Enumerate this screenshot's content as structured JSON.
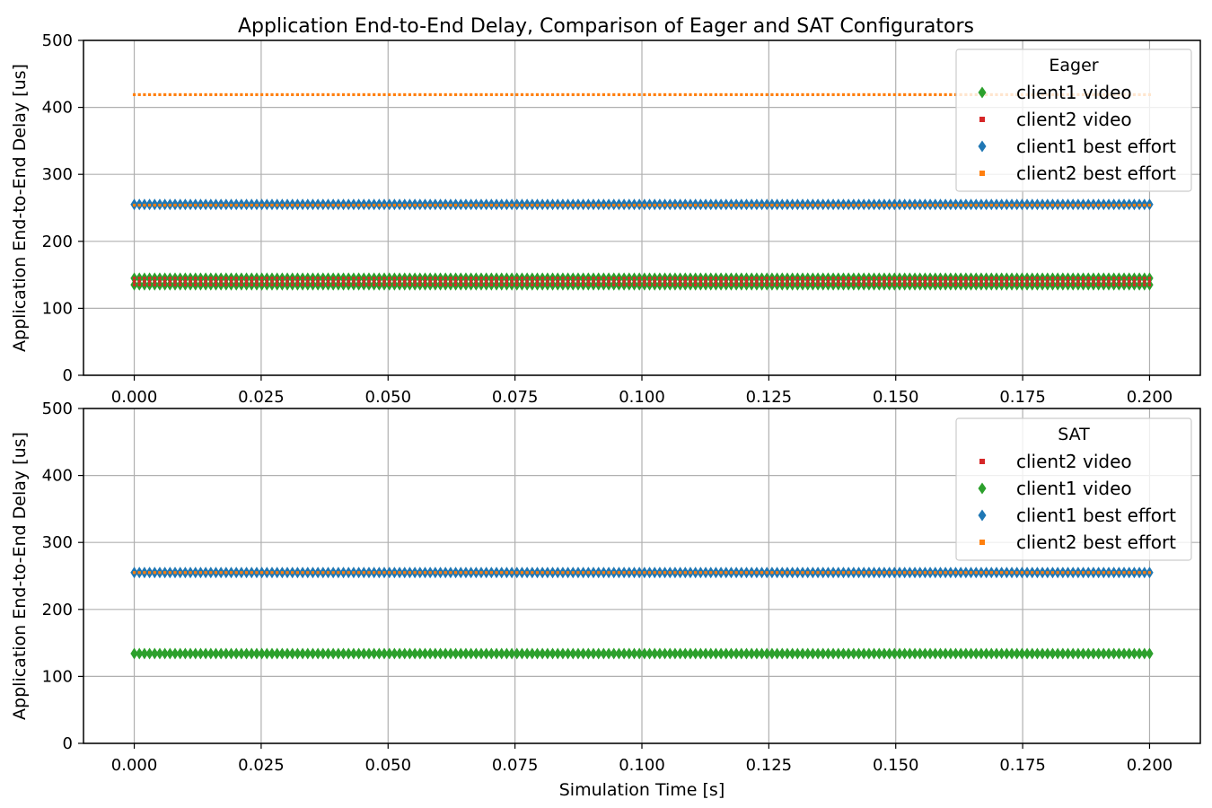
{
  "title": "Application End-to-End Delay, Comparison of Eager and SAT Configurators",
  "colors": {
    "green": "#2ca02c",
    "red": "#d62728",
    "blue": "#1f77b4",
    "orange": "#ff7f0e"
  },
  "chart_data": [
    {
      "type": "scatter",
      "panel": "top",
      "ylabel": "Application End-to-End Delay [us]",
      "xlabel": "",
      "xlim": [
        -0.01,
        0.21
      ],
      "ylim": [
        0,
        500
      ],
      "xticks": [
        "0.000",
        "0.025",
        "0.050",
        "0.075",
        "0.100",
        "0.125",
        "0.150",
        "0.175",
        "0.200"
      ],
      "yticks": [
        "0",
        "100",
        "200",
        "300",
        "400",
        "500"
      ],
      "grid": true,
      "legend": {
        "title": "Eager",
        "placement": "upper right"
      },
      "x_range": [
        0.0,
        0.2
      ],
      "series": [
        {
          "name": "client1 video",
          "color": "#2ca02c",
          "marker": "thin-diamond",
          "points": 200,
          "y": [
            135,
            145
          ]
        },
        {
          "name": "client2 video",
          "color": "#d62728",
          "marker": "square",
          "points": 200,
          "y": [
            135,
            140,
            145
          ]
        },
        {
          "name": "client1 best effort",
          "color": "#1f77b4",
          "marker": "thin-diamond",
          "points": 200,
          "y": [
            255
          ]
        },
        {
          "name": "client2 best effort",
          "color": "#ff7f0e",
          "marker": "square",
          "points": 200,
          "y": [
            254,
            419
          ]
        }
      ]
    },
    {
      "type": "scatter",
      "panel": "bottom",
      "ylabel": "Application End-to-End Delay [us]",
      "xlabel": "Simulation Time [s]",
      "xlim": [
        -0.01,
        0.21
      ],
      "ylim": [
        0,
        500
      ],
      "xticks": [
        "0.000",
        "0.025",
        "0.050",
        "0.075",
        "0.100",
        "0.125",
        "0.150",
        "0.175",
        "0.200"
      ],
      "yticks": [
        "0",
        "100",
        "200",
        "300",
        "400",
        "500"
      ],
      "grid": true,
      "legend": {
        "title": "SAT",
        "placement": "upper right"
      },
      "x_range": [
        0.0,
        0.2
      ],
      "series": [
        {
          "name": "client2 video",
          "color": "#d62728",
          "marker": "square",
          "points": 200,
          "y": [
            134
          ]
        },
        {
          "name": "client1 video",
          "color": "#2ca02c",
          "marker": "thin-diamond",
          "points": 200,
          "y": [
            134
          ]
        },
        {
          "name": "client1 best effort",
          "color": "#1f77b4",
          "marker": "thin-diamond",
          "points": 200,
          "y": [
            255
          ]
        },
        {
          "name": "client2 best effort",
          "color": "#ff7f0e",
          "marker": "square",
          "points": 200,
          "y": [
            255
          ]
        }
      ]
    }
  ]
}
